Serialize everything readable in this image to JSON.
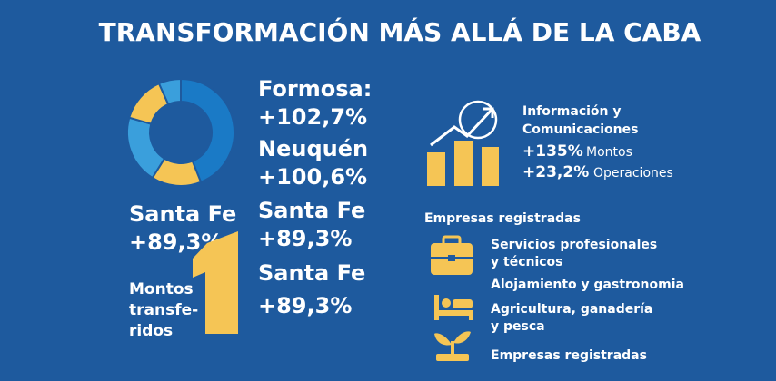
{
  "header": {
    "title": "TRANSFORMACIÓN MÁS ALLÁ DE LA CABA"
  },
  "provinces": [
    {
      "name": "Formosa:",
      "value": "+102,7%"
    },
    {
      "name": "Neuquén",
      "value": "+100,6%"
    },
    {
      "name": "Santa Fe",
      "value": "+89,3%"
    },
    {
      "name": "Santa Fe",
      "value": "+89,3%"
    }
  ],
  "left_highlight": {
    "name": "Santa Fe",
    "value": "+89,3%"
  },
  "montos": {
    "lines": [
      "Montos",
      "transfe-",
      "ridos"
    ]
  },
  "sector": {
    "title_lines": [
      "Información y",
      "Comunicaciones"
    ],
    "stats": [
      {
        "value": "+135%",
        "label": "Montos"
      },
      {
        "value": "+23,2%",
        "label": "Operaciones"
      }
    ]
  },
  "companies": {
    "heading": "Empresas registradas",
    "items": [
      [
        "Servicios profesionales",
        "y técnicos"
      ],
      [
        "Alojamiento y gastronomia"
      ],
      [
        "Agricultura, ganadería",
        "y pesca"
      ],
      [
        "Empresas registradas"
      ]
    ]
  }
}
